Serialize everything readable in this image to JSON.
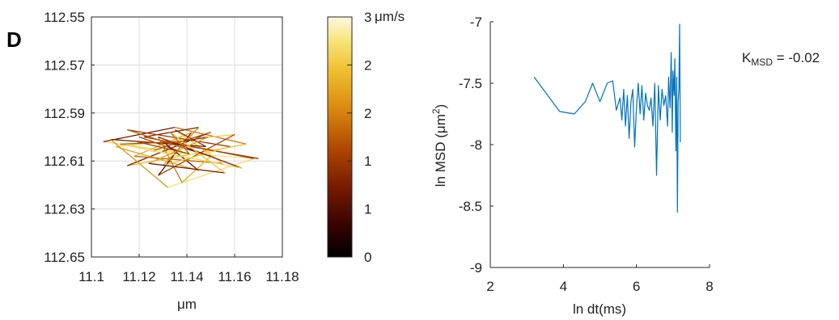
{
  "panel_label": "D",
  "annotation": {
    "k_main": "K",
    "k_sub": "MSD",
    "k_rest": " = -0.02"
  },
  "colors": {
    "msd_line": "#0072bd",
    "grid": "#dcdcdc",
    "axis": "#262626"
  },
  "colormap": [
    "#000000",
    "#3a0400",
    "#7a1c00",
    "#b24a00",
    "#da8a10",
    "#f0c030",
    "#f6e47a",
    "#fcf8e0"
  ],
  "chart_data": [
    {
      "type": "line",
      "title": "",
      "xlabel": "μm",
      "ylabel": "",
      "xlim": [
        11.1,
        11.18
      ],
      "ylim": [
        112.55,
        112.65
      ],
      "y_reversed": true,
      "grid": true,
      "x_ticks": [
        "11.1",
        "11.12",
        "11.14",
        "11.16",
        "11.18"
      ],
      "y_ticks": [
        "112.55",
        "112.57",
        "112.59",
        "112.61",
        "112.63",
        "112.65"
      ],
      "x": [
        11.12,
        11.14,
        11.105,
        11.135,
        11.165,
        11.115,
        11.15,
        11.125,
        11.17,
        11.13,
        11.145,
        11.11,
        11.16,
        11.128,
        11.142,
        11.118,
        11.155,
        11.135,
        11.148,
        11.108,
        11.132,
        11.168,
        11.122,
        11.145,
        11.13,
        11.158,
        11.115,
        11.14,
        11.15,
        11.138,
        11.128,
        11.163,
        11.112,
        11.137,
        11.149,
        11.124,
        11.156,
        11.133,
        11.141,
        11.119
      ],
      "y": [
        112.6,
        112.607,
        112.602,
        112.596,
        112.603,
        112.612,
        112.598,
        112.606,
        112.609,
        112.602,
        112.614,
        112.604,
        112.599,
        112.616,
        112.598,
        112.608,
        112.611,
        112.597,
        112.604,
        112.601,
        112.621,
        112.609,
        112.6,
        112.596,
        112.612,
        112.604,
        112.597,
        112.605,
        112.608,
        112.619,
        112.6,
        112.613,
        112.603,
        112.602,
        112.6,
        112.611,
        112.615,
        112.598,
        112.607,
        112.602
      ],
      "speed": [
        1.2,
        2.4,
        0.8,
        1.6,
        2.1,
        0.9,
        1.4,
        2.6,
        1.1,
        0.7,
        1.9,
        2.3,
        1.3,
        0.6,
        2.0,
        1.5,
        2.2,
        1.0,
        0.8,
        1.8,
        2.5,
        1.2,
        0.9,
        1.7,
        2.3,
        1.1,
        1.4,
        0.7,
        2.0,
        1.6,
        0.9,
        2.4,
        1.3,
        1.0,
        1.9,
        0.8,
        2.2,
        1.5,
        1.2,
        2.0
      ]
    },
    {
      "type": "heatmap",
      "title": "",
      "unit_label": "μm/s",
      "clim": [
        0,
        3
      ],
      "ticks": [
        "0",
        "1",
        "1",
        "2",
        "2",
        "3"
      ]
    },
    {
      "type": "line",
      "title": "",
      "xlabel": "ln dt(ms)",
      "ylabel": "ln MSD (μm",
      "ylabel_sup": "2",
      "ylabel_close": ")",
      "xlim": [
        2,
        8
      ],
      "ylim": [
        -9,
        -7
      ],
      "grid": false,
      "x_ticks": [
        "2",
        "4",
        "6",
        "8"
      ],
      "y_ticks": [
        "-9",
        "-8.5",
        "-8",
        "-7.5",
        "-7"
      ],
      "series": [
        {
          "x": [
            3.2,
            3.9,
            4.3,
            4.6,
            4.8,
            5.0,
            5.2,
            5.35,
            5.45,
            5.55,
            5.6,
            5.65,
            5.7,
            5.75,
            5.8,
            5.85,
            5.9,
            5.95,
            6.0,
            6.05,
            6.1,
            6.15,
            6.2,
            6.25,
            6.3,
            6.35,
            6.4,
            6.45,
            6.5,
            6.55,
            6.6,
            6.65,
            6.7,
            6.75,
            6.8,
            6.85,
            6.88,
            6.92,
            6.95,
            6.98,
            7.0,
            7.03,
            7.05,
            7.08,
            7.1,
            7.12,
            7.14,
            7.16,
            7.18,
            7.2
          ],
          "y": [
            -7.45,
            -7.73,
            -7.75,
            -7.65,
            -7.5,
            -7.65,
            -7.5,
            -7.48,
            -7.72,
            -7.62,
            -7.8,
            -7.55,
            -7.85,
            -7.6,
            -7.95,
            -7.65,
            -7.55,
            -8.02,
            -7.7,
            -7.5,
            -7.75,
            -7.52,
            -7.8,
            -7.58,
            -7.68,
            -7.72,
            -7.62,
            -7.85,
            -7.5,
            -8.25,
            -7.52,
            -7.8,
            -7.55,
            -7.68,
            -7.6,
            -7.85,
            -7.45,
            -7.7,
            -7.25,
            -7.9,
            -7.4,
            -7.6,
            -7.3,
            -8.05,
            -7.45,
            -8.55,
            -7.65,
            -7.55,
            -7.02,
            -7.98
          ]
        }
      ]
    }
  ]
}
